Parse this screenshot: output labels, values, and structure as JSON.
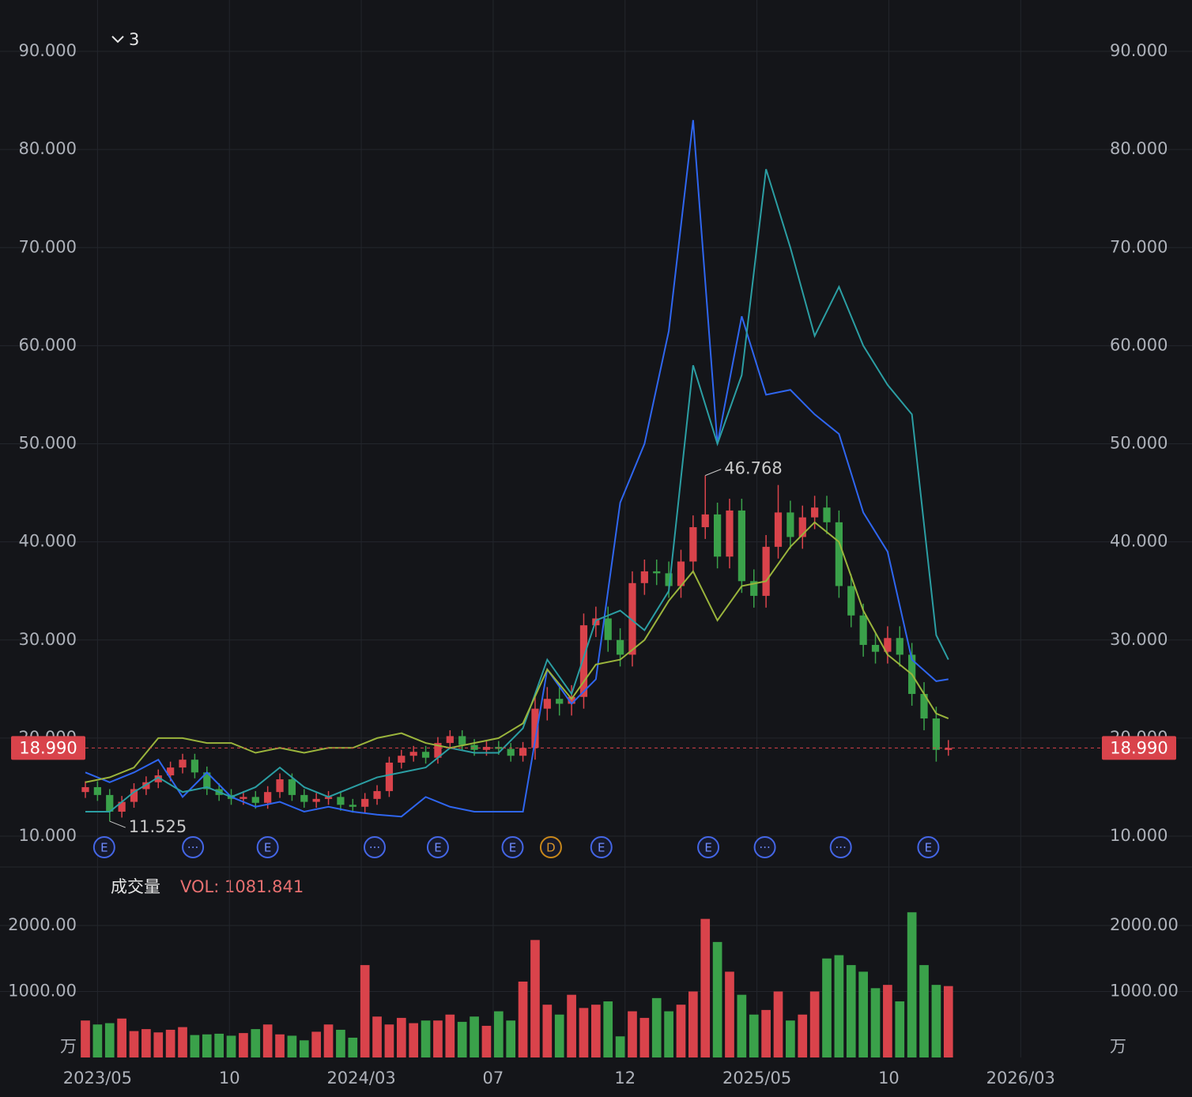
{
  "chart_data": {
    "type": "candlestick",
    "indicator_count": "3",
    "up_color": "#d9434b",
    "down_color": "#3aa14a",
    "xlim": [
      0,
      167
    ],
    "xticks": [
      {
        "value": 2,
        "label": "2023/05"
      },
      {
        "value": 23.7,
        "label": "10"
      },
      {
        "value": 45.4,
        "label": "2024/03"
      },
      {
        "value": 67.1,
        "label": "07"
      },
      {
        "value": 88.8,
        "label": "12"
      },
      {
        "value": 110.5,
        "label": "2025/05"
      },
      {
        "value": 132.2,
        "label": "10"
      },
      {
        "value": 153.9,
        "label": "2026/03"
      }
    ],
    "ylim": [
      7.02,
      93.79
    ],
    "yticks": [
      {
        "value": 10,
        "label": "10.000"
      },
      {
        "value": 20,
        "label": "20.000"
      },
      {
        "value": 30,
        "label": "30.000"
      },
      {
        "value": 40,
        "label": "40.000"
      },
      {
        "value": 50,
        "label": "50.000"
      },
      {
        "value": 60,
        "label": "60.000"
      },
      {
        "value": 70,
        "label": "70.000"
      },
      {
        "value": 80,
        "label": "80.000"
      },
      {
        "value": 90,
        "label": "90.000"
      }
    ],
    "grid": true,
    "x": [
      0,
      2,
      4,
      6,
      8,
      10,
      12,
      14,
      16,
      18,
      20,
      22,
      24,
      26,
      28,
      30,
      32,
      34,
      36,
      38,
      40,
      42,
      44,
      46,
      48,
      50,
      52,
      54,
      56,
      58,
      60,
      62,
      64,
      66,
      68,
      70,
      72,
      74,
      76,
      78,
      80,
      82,
      84,
      86,
      88,
      90,
      92,
      94,
      96,
      98,
      100,
      102,
      104,
      106,
      108,
      110,
      112,
      114,
      116,
      118,
      120,
      122,
      124,
      126,
      128,
      130,
      132,
      134,
      136,
      138,
      140,
      142
    ],
    "open": [
      14.5,
      15.0,
      14.2,
      12.5,
      13.5,
      14.8,
      15.5,
      16.2,
      17.0,
      17.8,
      16.5,
      14.8,
      14.2,
      13.8,
      14.0,
      13.4,
      14.5,
      15.8,
      14.2,
      13.5,
      13.8,
      14.0,
      13.2,
      13.0,
      13.8,
      14.6,
      17.5,
      18.2,
      18.6,
      18.0,
      19.5,
      20.2,
      19.3,
      18.8,
      19.1,
      18.9,
      18.2,
      19.0,
      23.0,
      24.0,
      23.5,
      24.2,
      31.5,
      32.2,
      30.0,
      28.5,
      35.8,
      37.0,
      36.8,
      35.5,
      38.0,
      41.5,
      42.8,
      38.5,
      43.2,
      36.0,
      34.5,
      39.5,
      43.0,
      40.5,
      42.5,
      43.5,
      42.0,
      35.5,
      32.5,
      29.5,
      28.8,
      30.2,
      28.5,
      24.5,
      22.0,
      18.8
    ],
    "high": [
      15.6,
      15.6,
      14.8,
      14.1,
      15.4,
      16.1,
      16.8,
      17.6,
      18.4,
      18.4,
      17.1,
      15.4,
      14.8,
      14.6,
      14.6,
      15.1,
      16.4,
      16.4,
      14.8,
      14.4,
      14.6,
      14.6,
      13.8,
      14.4,
      15.2,
      18.1,
      18.8,
      19.2,
      19.2,
      20.1,
      20.8,
      20.8,
      19.9,
      19.7,
      19.7,
      19.5,
      19.6,
      24.2,
      25.2,
      25.2,
      25.4,
      32.7,
      33.4,
      33.4,
      31.2,
      37.0,
      38.2,
      38.2,
      38.0,
      39.2,
      42.7,
      46.768,
      44.0,
      44.4,
      44.4,
      37.2,
      40.7,
      45.8,
      44.2,
      43.7,
      44.7,
      44.7,
      43.2,
      36.7,
      33.7,
      30.7,
      31.4,
      31.4,
      29.7,
      25.7,
      23.2,
      19.8
    ],
    "low": [
      13.9,
      13.6,
      11.525,
      11.9,
      12.9,
      14.2,
      14.9,
      15.6,
      16.4,
      15.9,
      14.2,
      13.6,
      13.2,
      13.2,
      12.8,
      12.8,
      13.9,
      13.6,
      12.9,
      12.9,
      13.2,
      12.6,
      12.4,
      12.4,
      13.2,
      14.0,
      16.9,
      17.6,
      17.4,
      17.4,
      18.9,
      18.7,
      18.2,
      18.2,
      18.3,
      17.6,
      17.6,
      17.8,
      21.8,
      22.3,
      22.3,
      23.0,
      30.3,
      28.8,
      27.3,
      27.3,
      34.6,
      35.6,
      34.3,
      34.3,
      36.8,
      40.3,
      37.3,
      37.3,
      34.8,
      33.3,
      33.3,
      38.3,
      39.3,
      39.3,
      41.3,
      40.8,
      34.3,
      31.3,
      28.3,
      27.6,
      27.6,
      27.3,
      23.3,
      20.8,
      17.6,
      18.2
    ],
    "close": [
      15.0,
      14.2,
      12.5,
      13.5,
      14.8,
      15.5,
      16.2,
      17.0,
      17.8,
      16.5,
      14.8,
      14.2,
      13.8,
      14.0,
      13.4,
      14.5,
      15.8,
      14.2,
      13.5,
      13.8,
      14.0,
      13.2,
      13.0,
      13.8,
      14.6,
      17.5,
      18.2,
      18.6,
      18.0,
      19.5,
      20.2,
      19.3,
      18.8,
      19.1,
      18.9,
      18.2,
      19.0,
      23.0,
      24.0,
      23.5,
      24.2,
      31.5,
      32.2,
      30.0,
      28.5,
      35.8,
      37.0,
      36.8,
      35.5,
      38.0,
      41.5,
      42.8,
      38.5,
      43.2,
      36.0,
      34.5,
      39.5,
      43.0,
      40.5,
      42.5,
      43.5,
      42.0,
      35.5,
      32.5,
      29.5,
      28.8,
      30.2,
      28.5,
      24.5,
      22.0,
      18.8,
      18.99
    ],
    "last_price": {
      "value": 18.99,
      "label": "18.990",
      "color": "#d9434b"
    },
    "annotations": [
      {
        "x": 102,
        "value": 46.768,
        "label": "46.768"
      },
      {
        "x": 4,
        "value": 11.525,
        "label": "11.525"
      }
    ],
    "overlays": [
      {
        "color": "#2f66f0",
        "x": [
          0,
          4,
          8,
          12,
          16,
          20,
          24,
          28,
          32,
          36,
          40,
          44,
          48,
          52,
          56,
          60,
          64,
          68,
          72,
          76,
          80,
          84,
          88,
          92,
          96,
          100,
          104,
          108,
          112,
          116,
          120,
          124,
          128,
          132,
          136,
          140,
          142
        ],
        "values": [
          16.5,
          15.5,
          16.5,
          17.8,
          14.0,
          16.5,
          14.0,
          13.0,
          13.5,
          12.5,
          13.0,
          12.5,
          12.2,
          12.0,
          14.0,
          13.0,
          12.5,
          12.5,
          12.5,
          27.0,
          23.5,
          26.0,
          44.0,
          50.0,
          61.5,
          83.0,
          50.0,
          63.0,
          55.0,
          55.5,
          53.0,
          51.0,
          43.0,
          39.0,
          28.0,
          25.8,
          26.0
        ]
      },
      {
        "color": "#2b9ea3",
        "x": [
          0,
          4,
          8,
          12,
          16,
          20,
          24,
          28,
          32,
          36,
          40,
          44,
          48,
          52,
          56,
          60,
          64,
          68,
          72,
          76,
          80,
          84,
          88,
          92,
          96,
          100,
          104,
          108,
          112,
          116,
          120,
          124,
          128,
          132,
          136,
          140,
          142
        ],
        "values": [
          12.5,
          12.5,
          14.5,
          16.0,
          14.5,
          15.0,
          14.0,
          15.0,
          17.0,
          15.0,
          14.0,
          15.0,
          16.0,
          16.5,
          17.0,
          19.0,
          18.5,
          18.5,
          21.0,
          28.0,
          24.5,
          32.0,
          33.0,
          31.0,
          35.0,
          58.0,
          50.0,
          57.0,
          78.0,
          70.0,
          61.0,
          66.0,
          60.0,
          56.0,
          53.0,
          30.5,
          28.0
        ]
      },
      {
        "color": "#9ab43c",
        "x": [
          0,
          4,
          8,
          12,
          16,
          20,
          24,
          28,
          32,
          36,
          40,
          44,
          48,
          52,
          56,
          60,
          64,
          68,
          72,
          76,
          80,
          84,
          88,
          92,
          96,
          100,
          104,
          108,
          112,
          116,
          120,
          124,
          128,
          132,
          136,
          140,
          142
        ],
        "values": [
          15.5,
          16.0,
          17.0,
          20.0,
          20.0,
          19.5,
          19.5,
          18.5,
          19.0,
          18.5,
          19.0,
          19.0,
          20.0,
          20.5,
          19.5,
          19.0,
          19.5,
          20.0,
          21.5,
          27.0,
          24.0,
          27.5,
          28.0,
          30.0,
          34.0,
          37.0,
          32.0,
          35.5,
          36.0,
          39.5,
          42.0,
          40.0,
          33.0,
          28.5,
          26.5,
          22.5,
          22.0
        ]
      }
    ],
    "events": [
      {
        "x": 3.1,
        "label": "E"
      },
      {
        "x": 17.7,
        "label": "···"
      },
      {
        "x": 30.0,
        "label": "E"
      },
      {
        "x": 47.6,
        "label": "···"
      },
      {
        "x": 58.0,
        "label": "E"
      },
      {
        "x": 70.3,
        "label": "E"
      },
      {
        "x": 76.6,
        "label": "D"
      },
      {
        "x": 84.9,
        "label": "E"
      },
      {
        "x": 102.5,
        "label": "E"
      },
      {
        "x": 111.8,
        "label": "···"
      },
      {
        "x": 124.3,
        "label": "···"
      },
      {
        "x": 138.7,
        "label": "E"
      }
    ],
    "volume": {
      "title": "成交量",
      "label": "VOL: 1081.841",
      "unit": "万",
      "ylim": [
        0,
        2850
      ],
      "yticks": [
        {
          "value": 1000,
          "label": "1000.00"
        },
        {
          "value": 2000,
          "label": "2000.00"
        }
      ],
      "values": [
        560,
        500,
        520,
        590,
        400,
        430,
        380,
        420,
        460,
        340,
        350,
        360,
        330,
        370,
        430,
        500,
        350,
        330,
        260,
        390,
        500,
        420,
        300,
        1400,
        620,
        500,
        600,
        520,
        560,
        560,
        650,
        540,
        620,
        480,
        700,
        560,
        1150,
        1780,
        800,
        650,
        950,
        750,
        800,
        850,
        320,
        700,
        600,
        900,
        700,
        800,
        1000,
        2100,
        1750,
        1300,
        950,
        650,
        720,
        1000,
        560,
        650,
        1000,
        1500,
        1550,
        1400,
        1300,
        1050,
        1100,
        850,
        2200,
        1400,
        1100,
        1081.841
      ]
    }
  }
}
